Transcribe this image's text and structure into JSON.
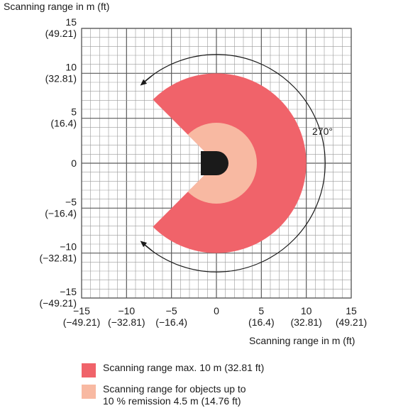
{
  "axes": {
    "y_title": "Scanning range in m (ft)",
    "x_title": "Scanning range in m (ft)",
    "y_ticks": [
      {
        "m": "15",
        "ft": "(49.21)"
      },
      {
        "m": "10",
        "ft": "(32.81)"
      },
      {
        "m": "5",
        "ft": "(16.4)"
      },
      {
        "m": "0",
        "ft": ""
      },
      {
        "m": "−5",
        "ft": "(−16.4)"
      },
      {
        "m": "−10",
        "ft": "(−32.81)"
      },
      {
        "m": "−15",
        "ft": "(−49.21)"
      }
    ],
    "x_ticks": [
      {
        "m": "−15",
        "ft": "(−49.21)"
      },
      {
        "m": "−10",
        "ft": "(−32.81)"
      },
      {
        "m": "−5",
        "ft": "(−16.4)"
      },
      {
        "m": "0",
        "ft": ""
      },
      {
        "m": "5",
        "ft": "(16.4)"
      },
      {
        "m": "10",
        "ft": "(32.81)"
      },
      {
        "m": "15",
        "ft": "(49.21)"
      }
    ]
  },
  "angle_label": "270°",
  "colors": {
    "max_range": "#f0636a",
    "remission_range": "#f8b9a2",
    "scanner": "#1a1a1a",
    "grid": "#9a9a9a"
  },
  "legend": {
    "max_range": "Scanning range max. 10 m (32.81 ft)",
    "remission_line1": "Scanning range for objects up to",
    "remission_line2": "10 % remission 4.5 m (14.76 ft)"
  }
}
